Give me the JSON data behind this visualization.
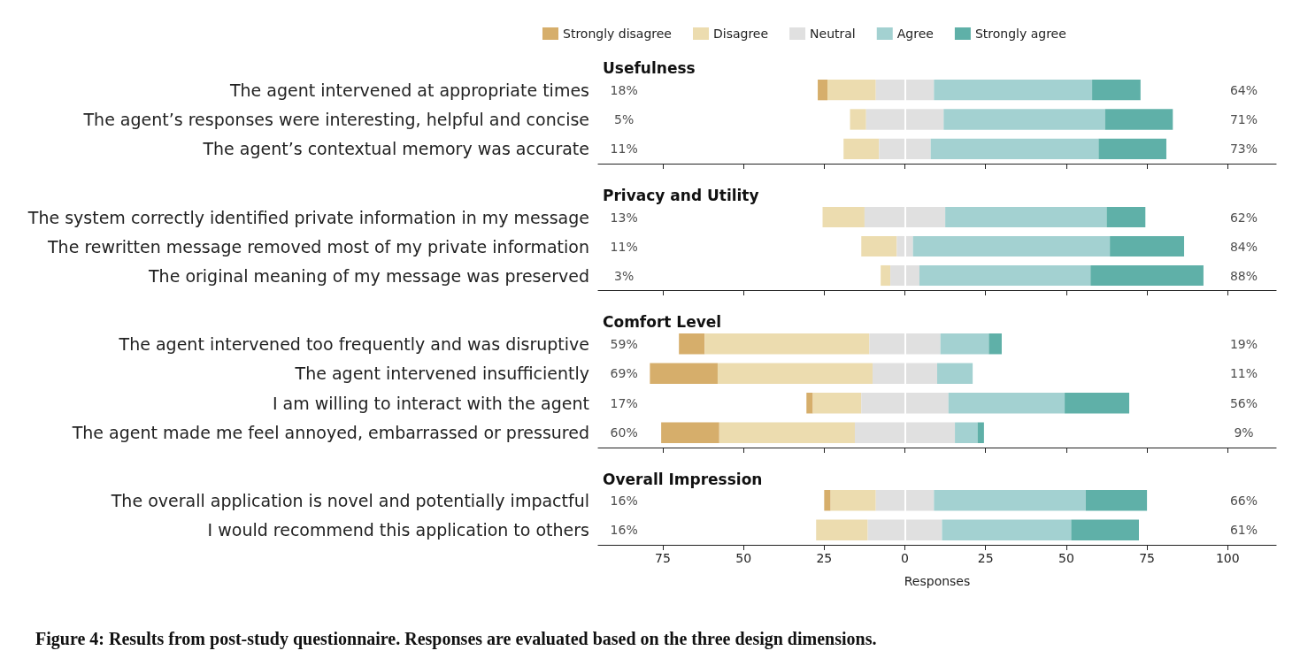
{
  "chart_data": [
    {
      "type": "bar",
      "orientation": "horizontal",
      "title": "Usefulness",
      "legend": "top",
      "tick_labels": "y",
      "xlim": [
        -95,
        115
      ],
      "xticks": [
        -75,
        -50,
        -25,
        0,
        25,
        50,
        75,
        100
      ],
      "categories": [
        "The agent intervened at appropriate times",
        "The agent’s responses were interesting, helpful and concise",
        "The agent’s contextual memory was accurate"
      ],
      "series": [
        {
          "name": "Strongly disagree",
          "color": "#d6ae6b",
          "base": [
            -27,
            null,
            null
          ],
          "values": [
            3,
            null,
            null
          ]
        },
        {
          "name": "Disagree",
          "color": "#ecdcaf",
          "base": [
            -24,
            -17,
            -19
          ],
          "values": [
            15,
            5,
            11
          ]
        },
        {
          "name": "Neutral",
          "color": "#e0e0e0",
          "base": [
            -9,
            -12,
            -8
          ],
          "values": [
            18,
            24,
            16
          ]
        },
        {
          "name": "Agree",
          "color": "#a3d1d1",
          "base": [
            9,
            12,
            8
          ],
          "values": [
            49,
            50,
            52
          ]
        },
        {
          "name": "Strongly agree",
          "color": "#5fb0a8",
          "base": [
            58,
            62,
            60
          ],
          "values": [
            15,
            21,
            21
          ]
        }
      ],
      "ref_lines": [
        {
          "axis": "x",
          "value": 0,
          "color": "#ffffff"
        }
      ],
      "annotations": [
        "18%",
        "5%",
        "11%",
        "64%",
        "71%",
        "73%"
      ]
    },
    {
      "type": "bar",
      "orientation": "horizontal",
      "title": "Privacy and Utility",
      "tick_labels": "y",
      "xlim": [
        -95,
        115
      ],
      "xticks": [
        -75,
        -50,
        -25,
        0,
        25,
        50,
        75,
        100
      ],
      "categories": [
        "The system correctly identified private information in my message",
        "The rewritten message removed most of my private information",
        "The original meaning of my message was preserved"
      ],
      "series": [
        {
          "color": "#ecdcaf",
          "base": [
            -25.5,
            -13.5,
            -7.5
          ],
          "values": [
            13,
            11,
            3
          ]
        },
        {
          "color": "#e0e0e0",
          "base": [
            -12.5,
            -2.5,
            -4.5
          ],
          "values": [
            25,
            5,
            9
          ]
        },
        {
          "color": "#a3d1d1",
          "base": [
            12.5,
            2.5,
            4.5
          ],
          "values": [
            50,
            61,
            53
          ]
        },
        {
          "color": "#5fb0a8",
          "base": [
            62.5,
            63.5,
            57.5
          ],
          "values": [
            12,
            23,
            35
          ]
        }
      ],
      "ref_lines": [
        {
          "axis": "x",
          "value": 0,
          "color": "#ffffff"
        }
      ],
      "annotations": [
        "13%",
        "11%",
        "3%",
        "62%",
        "84%",
        "88%"
      ]
    },
    {
      "type": "bar",
      "orientation": "horizontal",
      "title": "Comfort Level",
      "tick_labels": "y",
      "xlim": [
        -95,
        115
      ],
      "xticks": [
        -75,
        -50,
        -25,
        0,
        25,
        50,
        75,
        100
      ],
      "categories": [
        "The agent intervened too frequently and was disruptive",
        "The agent intervened insufficiently",
        "I am willing to interact with the agent",
        "The agent made me feel annoyed, embarrassed or pressured"
      ],
      "series": [
        {
          "color": "#d6ae6b",
          "base": [
            -70,
            -79,
            -30.5,
            -75.5
          ],
          "values": [
            8,
            21,
            2,
            18
          ]
        },
        {
          "color": "#ecdcaf",
          "base": [
            -62,
            -58,
            -28.5,
            -57.5
          ],
          "values": [
            51,
            48,
            15,
            42
          ]
        },
        {
          "color": "#e0e0e0",
          "base": [
            -11,
            -10,
            -13.5,
            -15.5
          ],
          "values": [
            22,
            20,
            27,
            31
          ]
        },
        {
          "color": "#a3d1d1",
          "base": [
            11,
            10,
            13.5,
            15.5
          ],
          "values": [
            15,
            11,
            36,
            7
          ]
        },
        {
          "color": "#5fb0a8",
          "base": [
            26,
            null,
            49.5,
            22.5
          ],
          "values": [
            4,
            null,
            20,
            2
          ]
        }
      ],
      "ref_lines": [
        {
          "axis": "x",
          "value": 0,
          "color": "#ffffff"
        }
      ],
      "annotations": [
        "59%",
        "69%",
        "17%",
        "60%",
        "19%",
        "11%",
        "56%",
        "9%"
      ]
    },
    {
      "type": "bar",
      "orientation": "horizontal",
      "title": "Overall Impression",
      "xlabel": "Responses",
      "xlim": [
        -95,
        115
      ],
      "xticks": [
        {
          "value": -75,
          "label": "75"
        },
        {
          "value": -50,
          "label": "50"
        },
        {
          "value": -25,
          "label": "25"
        },
        0,
        25,
        50,
        75,
        100
      ],
      "categories": [
        "The overall application is novel and potentially impactful",
        "I would recommend this application to others"
      ],
      "series": [
        {
          "color": "#d6ae6b",
          "base": [
            -25,
            null
          ],
          "values": [
            2,
            null
          ]
        },
        {
          "color": "#ecdcaf",
          "base": [
            -23,
            -27.5
          ],
          "values": [
            14,
            16
          ]
        },
        {
          "color": "#e0e0e0",
          "base": [
            -9,
            -11.5
          ],
          "values": [
            18,
            23
          ]
        },
        {
          "color": "#a3d1d1",
          "base": [
            9,
            11.5
          ],
          "values": [
            47,
            40
          ]
        },
        {
          "color": "#5fb0a8",
          "base": [
            56,
            51.5
          ],
          "values": [
            19,
            21
          ]
        }
      ],
      "ref_lines": [
        {
          "axis": "x",
          "value": 0,
          "color": "#ffffff"
        }
      ],
      "annotations": [
        "16%",
        "16%",
        "66%",
        "61%",
        "Figure 4: Results from post-study questionnaire. Responses are evaluated based on the three design dimensions."
      ]
    }
  ]
}
